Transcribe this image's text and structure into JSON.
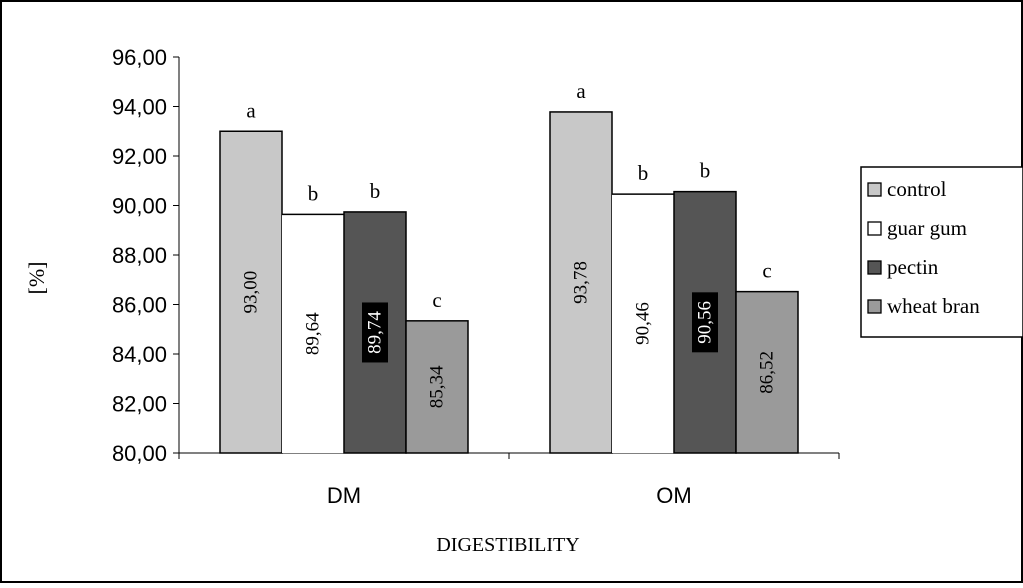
{
  "chart_data": {
    "type": "bar",
    "title": "",
    "xlabel": "DIGESTIBILITY",
    "ylabel": "[%]",
    "ylim": [
      80,
      96
    ],
    "ytick_step": 2,
    "ytick_labels": [
      "80,00",
      "82,00",
      "84,00",
      "86,00",
      "88,00",
      "90,00",
      "92,00",
      "94,00",
      "96,00"
    ],
    "categories": [
      "DM",
      "OM"
    ],
    "grid": false,
    "legend_position": "right",
    "series": [
      {
        "name": "control",
        "color": "#c8c8c8",
        "values": [
          93.0,
          93.78
        ],
        "value_labels": [
          "93,00",
          "93,78"
        ],
        "letters": [
          "a",
          "a"
        ]
      },
      {
        "name": "guar gum",
        "color": "#ffffff",
        "values": [
          89.64,
          90.46
        ],
        "value_labels": [
          "89,64",
          "90,46"
        ],
        "letters": [
          "b",
          "b"
        ]
      },
      {
        "name": "pectin",
        "color": "#555555",
        "values": [
          89.74,
          90.56
        ],
        "value_labels": [
          "89,74",
          "90,56"
        ],
        "letters": [
          "b",
          "b"
        ]
      },
      {
        "name": "wheat bran",
        "color": "#9a9a9a",
        "values": [
          85.34,
          86.52
        ],
        "value_labels": [
          "85,34",
          "86,52"
        ],
        "letters": [
          "c",
          "c"
        ]
      }
    ]
  }
}
